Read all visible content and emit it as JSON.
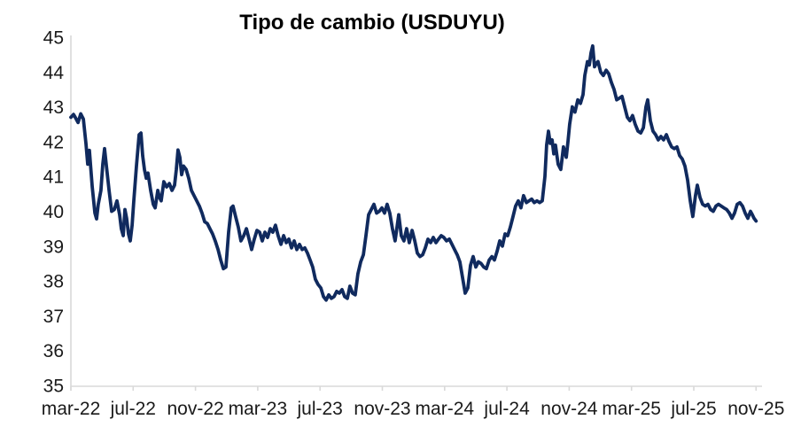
{
  "title": "Tipo de cambio (USDUYU)",
  "colors": {
    "line": "#102a5e",
    "axis": "#d9d9d9",
    "text": "#1a1a1a",
    "background": "#ffffff"
  },
  "chart_data": {
    "type": "line",
    "title": "Tipo de cambio (USDUYU)",
    "xlabel": "",
    "ylabel": "",
    "grid": false,
    "legend": false,
    "ylim": [
      35,
      45
    ],
    "y_ticks": [
      45,
      44,
      43,
      42,
      41,
      40,
      39,
      38,
      37,
      36,
      35
    ],
    "x_unit": "months since mar-22 (ticks every 4 months)",
    "x_range": [
      0,
      44
    ],
    "x_tick_labels": [
      "mar-22",
      "jul-22",
      "nov-22",
      "mar-23",
      "jul-23",
      "nov-23",
      "mar-24",
      "jul-24",
      "nov-24",
      "mar-25",
      "jul-25",
      "nov-25"
    ],
    "series": [
      {
        "name": "USDUYU",
        "points": [
          [
            0.0,
            42.7
          ],
          [
            0.17,
            42.78
          ],
          [
            0.28,
            42.7
          ],
          [
            0.46,
            42.55
          ],
          [
            0.63,
            42.8
          ],
          [
            0.8,
            42.65
          ],
          [
            0.97,
            41.95
          ],
          [
            1.08,
            41.35
          ],
          [
            1.19,
            41.75
          ],
          [
            1.37,
            40.7
          ],
          [
            1.54,
            39.95
          ],
          [
            1.65,
            39.78
          ],
          [
            1.76,
            40.2
          ],
          [
            1.93,
            40.6
          ],
          [
            2.05,
            41.35
          ],
          [
            2.16,
            41.8
          ],
          [
            2.28,
            41.3
          ],
          [
            2.45,
            40.6
          ],
          [
            2.62,
            40.0
          ],
          [
            2.79,
            40.05
          ],
          [
            2.96,
            40.3
          ],
          [
            3.13,
            39.9
          ],
          [
            3.24,
            39.5
          ],
          [
            3.36,
            39.3
          ],
          [
            3.47,
            40.05
          ],
          [
            3.58,
            39.8
          ],
          [
            3.7,
            39.35
          ],
          [
            3.81,
            39.15
          ],
          [
            3.93,
            39.6
          ],
          [
            4.04,
            40.3
          ],
          [
            4.21,
            41.3
          ],
          [
            4.38,
            42.2
          ],
          [
            4.5,
            42.25
          ],
          [
            4.61,
            41.6
          ],
          [
            4.72,
            41.2
          ],
          [
            4.84,
            40.95
          ],
          [
            4.95,
            41.1
          ],
          [
            5.12,
            40.6
          ],
          [
            5.29,
            40.2
          ],
          [
            5.41,
            40.1
          ],
          [
            5.58,
            40.6
          ],
          [
            5.69,
            40.4
          ],
          [
            5.8,
            40.3
          ],
          [
            5.97,
            40.85
          ],
          [
            6.15,
            40.7
          ],
          [
            6.32,
            40.8
          ],
          [
            6.49,
            40.6
          ],
          [
            6.66,
            40.75
          ],
          [
            6.77,
            41.2
          ],
          [
            6.88,
            41.76
          ],
          [
            7.0,
            41.55
          ],
          [
            7.11,
            41.05
          ],
          [
            7.23,
            41.3
          ],
          [
            7.4,
            41.2
          ],
          [
            7.57,
            40.95
          ],
          [
            7.74,
            40.6
          ],
          [
            7.91,
            40.45
          ],
          [
            8.08,
            40.3
          ],
          [
            8.25,
            40.15
          ],
          [
            8.42,
            39.95
          ],
          [
            8.59,
            39.7
          ],
          [
            8.76,
            39.65
          ],
          [
            8.93,
            39.5
          ],
          [
            9.1,
            39.35
          ],
          [
            9.27,
            39.15
          ],
          [
            9.45,
            38.9
          ],
          [
            9.62,
            38.6
          ],
          [
            9.79,
            38.35
          ],
          [
            9.96,
            38.4
          ],
          [
            10.13,
            39.4
          ],
          [
            10.3,
            40.1
          ],
          [
            10.41,
            40.15
          ],
          [
            10.58,
            39.85
          ],
          [
            10.75,
            39.55
          ],
          [
            10.92,
            39.15
          ],
          [
            11.1,
            39.3
          ],
          [
            11.27,
            39.5
          ],
          [
            11.44,
            39.2
          ],
          [
            11.61,
            38.9
          ],
          [
            11.78,
            39.2
          ],
          [
            11.95,
            39.45
          ],
          [
            12.12,
            39.4
          ],
          [
            12.29,
            39.15
          ],
          [
            12.46,
            39.4
          ],
          [
            12.63,
            39.25
          ],
          [
            12.8,
            39.5
          ],
          [
            12.97,
            39.4
          ],
          [
            13.14,
            39.6
          ],
          [
            13.31,
            39.3
          ],
          [
            13.49,
            39.05
          ],
          [
            13.66,
            39.3
          ],
          [
            13.83,
            39.1
          ],
          [
            14.0,
            39.2
          ],
          [
            14.17,
            38.95
          ],
          [
            14.34,
            39.15
          ],
          [
            14.51,
            38.9
          ],
          [
            14.68,
            39.05
          ],
          [
            14.85,
            38.9
          ],
          [
            15.02,
            38.95
          ],
          [
            15.19,
            38.8
          ],
          [
            15.36,
            38.6
          ],
          [
            15.53,
            38.4
          ],
          [
            15.7,
            38.05
          ],
          [
            15.87,
            37.9
          ],
          [
            16.05,
            37.8
          ],
          [
            16.22,
            37.55
          ],
          [
            16.39,
            37.45
          ],
          [
            16.56,
            37.6
          ],
          [
            16.73,
            37.5
          ],
          [
            16.9,
            37.55
          ],
          [
            17.07,
            37.7
          ],
          [
            17.24,
            37.65
          ],
          [
            17.41,
            37.75
          ],
          [
            17.58,
            37.55
          ],
          [
            17.75,
            37.5
          ],
          [
            17.92,
            37.85
          ],
          [
            18.09,
            37.65
          ],
          [
            18.26,
            37.6
          ],
          [
            18.43,
            38.2
          ],
          [
            18.61,
            38.55
          ],
          [
            18.78,
            38.75
          ],
          [
            18.95,
            39.3
          ],
          [
            19.12,
            39.9
          ],
          [
            19.29,
            40.05
          ],
          [
            19.46,
            40.2
          ],
          [
            19.63,
            39.95
          ],
          [
            19.8,
            40.0
          ],
          [
            19.97,
            40.1
          ],
          [
            20.14,
            39.95
          ],
          [
            20.31,
            40.2
          ],
          [
            20.48,
            39.95
          ],
          [
            20.65,
            39.5
          ],
          [
            20.82,
            39.15
          ],
          [
            21.05,
            39.9
          ],
          [
            21.22,
            39.3
          ],
          [
            21.39,
            39.15
          ],
          [
            21.56,
            39.5
          ],
          [
            21.73,
            39.1
          ],
          [
            21.91,
            39.45
          ],
          [
            22.08,
            39.15
          ],
          [
            22.25,
            38.8
          ],
          [
            22.42,
            38.7
          ],
          [
            22.59,
            38.75
          ],
          [
            22.76,
            38.95
          ],
          [
            22.93,
            39.2
          ],
          [
            23.1,
            39.1
          ],
          [
            23.27,
            39.25
          ],
          [
            23.44,
            39.1
          ],
          [
            23.61,
            39.2
          ],
          [
            23.78,
            39.3
          ],
          [
            23.95,
            39.25
          ],
          [
            24.12,
            39.15
          ],
          [
            24.3,
            39.2
          ],
          [
            24.47,
            39.05
          ],
          [
            24.64,
            38.9
          ],
          [
            24.81,
            38.75
          ],
          [
            24.98,
            38.55
          ],
          [
            25.15,
            38.1
          ],
          [
            25.32,
            37.65
          ],
          [
            25.49,
            37.8
          ],
          [
            25.66,
            38.45
          ],
          [
            25.83,
            38.7
          ],
          [
            26.0,
            38.4
          ],
          [
            26.17,
            38.55
          ],
          [
            26.34,
            38.5
          ],
          [
            26.51,
            38.4
          ],
          [
            26.68,
            38.35
          ],
          [
            26.86,
            38.6
          ],
          [
            27.03,
            38.7
          ],
          [
            27.2,
            38.6
          ],
          [
            27.37,
            38.85
          ],
          [
            27.54,
            39.15
          ],
          [
            27.71,
            39.0
          ],
          [
            27.88,
            39.35
          ],
          [
            28.05,
            39.3
          ],
          [
            28.22,
            39.55
          ],
          [
            28.39,
            39.85
          ],
          [
            28.56,
            40.15
          ],
          [
            28.73,
            40.3
          ],
          [
            28.9,
            40.1
          ],
          [
            29.07,
            40.45
          ],
          [
            29.25,
            40.25
          ],
          [
            29.42,
            40.3
          ],
          [
            29.59,
            40.35
          ],
          [
            29.76,
            40.25
          ],
          [
            29.93,
            40.3
          ],
          [
            30.1,
            40.25
          ],
          [
            30.27,
            40.3
          ],
          [
            30.44,
            41.0
          ],
          [
            30.55,
            41.9
          ],
          [
            30.67,
            42.3
          ],
          [
            30.78,
            41.95
          ],
          [
            30.9,
            42.05
          ],
          [
            31.01,
            41.65
          ],
          [
            31.12,
            41.9
          ],
          [
            31.29,
            41.35
          ],
          [
            31.46,
            41.2
          ],
          [
            31.63,
            41.85
          ],
          [
            31.81,
            41.55
          ],
          [
            31.92,
            42.0
          ],
          [
            32.03,
            42.5
          ],
          [
            32.2,
            43.0
          ],
          [
            32.37,
            42.85
          ],
          [
            32.55,
            43.2
          ],
          [
            32.72,
            43.1
          ],
          [
            32.89,
            43.35
          ],
          [
            33.0,
            43.9
          ],
          [
            33.17,
            44.3
          ],
          [
            33.29,
            44.2
          ],
          [
            33.4,
            44.55
          ],
          [
            33.51,
            44.75
          ],
          [
            33.63,
            44.15
          ],
          [
            33.74,
            44.25
          ],
          [
            33.85,
            44.3
          ],
          [
            34.02,
            44.0
          ],
          [
            34.19,
            43.9
          ],
          [
            34.37,
            44.05
          ],
          [
            34.54,
            43.95
          ],
          [
            34.71,
            43.7
          ],
          [
            34.88,
            43.5
          ],
          [
            35.05,
            43.2
          ],
          [
            35.22,
            43.25
          ],
          [
            35.39,
            43.3
          ],
          [
            35.56,
            43.0
          ],
          [
            35.73,
            42.7
          ],
          [
            35.9,
            42.6
          ],
          [
            36.07,
            42.75
          ],
          [
            36.24,
            42.5
          ],
          [
            36.42,
            42.3
          ],
          [
            36.59,
            42.25
          ],
          [
            36.76,
            42.4
          ],
          [
            36.93,
            43.0
          ],
          [
            37.04,
            43.2
          ],
          [
            37.21,
            42.6
          ],
          [
            37.38,
            42.3
          ],
          [
            37.55,
            42.2
          ],
          [
            37.72,
            42.05
          ],
          [
            37.89,
            42.15
          ],
          [
            38.06,
            42.05
          ],
          [
            38.24,
            42.2
          ],
          [
            38.41,
            42.0
          ],
          [
            38.58,
            41.85
          ],
          [
            38.75,
            41.8
          ],
          [
            38.92,
            41.85
          ],
          [
            39.09,
            41.6
          ],
          [
            39.26,
            41.5
          ],
          [
            39.43,
            41.3
          ],
          [
            39.6,
            40.9
          ],
          [
            39.77,
            40.3
          ],
          [
            39.94,
            39.85
          ],
          [
            40.11,
            40.45
          ],
          [
            40.23,
            40.75
          ],
          [
            40.4,
            40.4
          ],
          [
            40.57,
            40.2
          ],
          [
            40.74,
            40.15
          ],
          [
            40.91,
            40.2
          ],
          [
            41.08,
            40.05
          ],
          [
            41.25,
            40.0
          ],
          [
            41.42,
            40.15
          ],
          [
            41.59,
            40.2
          ],
          [
            41.76,
            40.15
          ],
          [
            41.93,
            40.1
          ],
          [
            42.11,
            40.05
          ],
          [
            42.28,
            39.95
          ],
          [
            42.45,
            39.8
          ],
          [
            42.62,
            39.95
          ],
          [
            42.79,
            40.2
          ],
          [
            42.96,
            40.25
          ],
          [
            43.13,
            40.15
          ],
          [
            43.3,
            39.95
          ],
          [
            43.47,
            39.8
          ],
          [
            43.64,
            40.0
          ],
          [
            43.76,
            39.9
          ],
          [
            43.87,
            39.8
          ],
          [
            44.0,
            39.72
          ]
        ]
      }
    ]
  }
}
